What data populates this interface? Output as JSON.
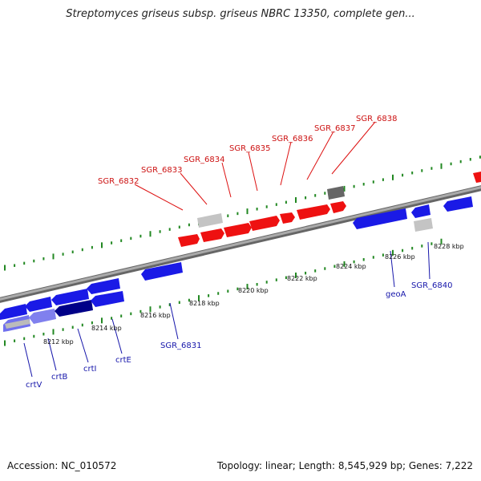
{
  "title": "Streptomyces griseus subsp. griseus NBRC 13350, complete gen...",
  "footer": {
    "accession": "Accession: NC_010572",
    "topology": "Topology: linear; Length: 8,545,929 bp; Genes: 7,222"
  },
  "colors": {
    "forward_gene": "#ee1111",
    "reverse_gene": "#1a1ae6",
    "pseudo_gene": "#bbbbbb",
    "axis": "#888888",
    "ticks": "#228822",
    "top_label": "#cc1111",
    "bottom_label": "#1515aa"
  },
  "top_labels": [
    "SGR_6832",
    "SGR_6833",
    "SGR_6834",
    "SGR_6835",
    "SGR_6836",
    "SGR_6837",
    "SGR_6838"
  ],
  "bottom_labels": [
    "crtV",
    "crtB",
    "crtI",
    "crtE",
    "SGR_6831",
    "geoA",
    "SGR_6840"
  ],
  "kbp_labels": [
    "8212 kbp",
    "8214 kbp",
    "8216 kbp",
    "8218 kbp",
    "8220 kbp",
    "8222 kbp",
    "8224 kbp",
    "8226 kbp",
    "8228 kbp"
  ]
}
